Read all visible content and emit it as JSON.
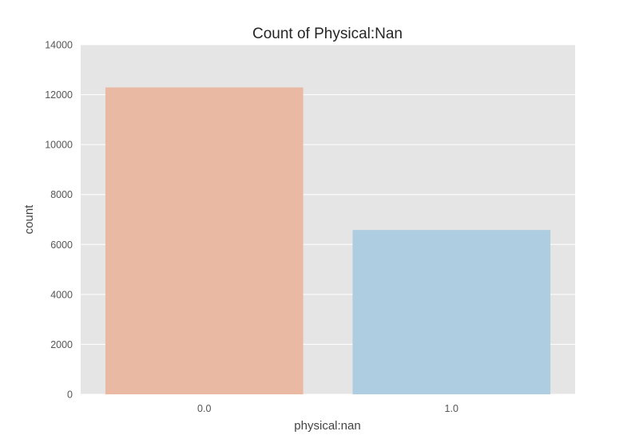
{
  "chart_data": {
    "type": "bar",
    "title": "Count of Physical:Nan",
    "xlabel": "physical:nan",
    "ylabel": "count",
    "categories": [
      "0.0",
      "1.0"
    ],
    "values": [
      12290,
      6580
    ],
    "ylim": [
      0,
      14000
    ],
    "yticks": [
      0,
      2000,
      4000,
      6000,
      8000,
      10000,
      12000,
      14000
    ],
    "grid": true,
    "legend": "none",
    "colors": {
      "plot_background": "#e5e5e5",
      "gridline": "#ffffff",
      "bars": [
        "#eab9a3",
        "#afcde1"
      ]
    }
  }
}
